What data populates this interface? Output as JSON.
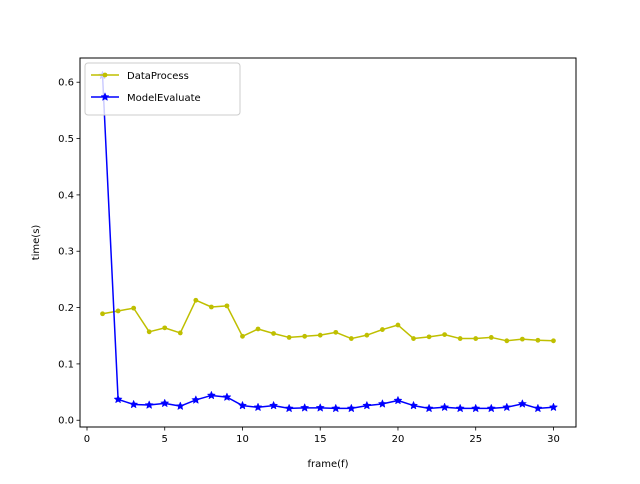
{
  "chart_data": {
    "type": "line",
    "title": "",
    "xlabel": "frame(f)",
    "ylabel": "time(s)",
    "xlim": [
      -0.45,
      31.45
    ],
    "ylim": [
      -0.012,
      0.643
    ],
    "xticks": [
      0,
      5,
      10,
      15,
      20,
      25,
      30
    ],
    "yticks": [
      0.0,
      0.1,
      0.2,
      0.3,
      0.4,
      0.5,
      0.6
    ],
    "grid": false,
    "legend_position": "top-left",
    "x": [
      1,
      2,
      3,
      4,
      5,
      6,
      7,
      8,
      9,
      10,
      11,
      12,
      13,
      14,
      15,
      16,
      17,
      18,
      19,
      20,
      21,
      22,
      23,
      24,
      25,
      26,
      27,
      28,
      29,
      30
    ],
    "series": [
      {
        "name": "DataProcess",
        "color": "#bfbf00",
        "marker": "circle",
        "values": [
          0.189,
          0.194,
          0.199,
          0.157,
          0.164,
          0.155,
          0.213,
          0.201,
          0.203,
          0.149,
          0.162,
          0.154,
          0.147,
          0.149,
          0.151,
          0.156,
          0.145,
          0.151,
          0.161,
          0.169,
          0.145,
          0.148,
          0.152,
          0.145,
          0.145,
          0.147,
          0.141,
          0.144,
          0.142,
          0.141
        ]
      },
      {
        "name": "ModelEvaluate",
        "color": "#0000ff",
        "marker": "star",
        "values": [
          0.612,
          0.037,
          0.028,
          0.027,
          0.03,
          0.025,
          0.036,
          0.044,
          0.041,
          0.026,
          0.023,
          0.026,
          0.021,
          0.022,
          0.022,
          0.021,
          0.021,
          0.026,
          0.029,
          0.035,
          0.026,
          0.021,
          0.023,
          0.021,
          0.021,
          0.021,
          0.023,
          0.029,
          0.021,
          0.023
        ]
      }
    ]
  }
}
